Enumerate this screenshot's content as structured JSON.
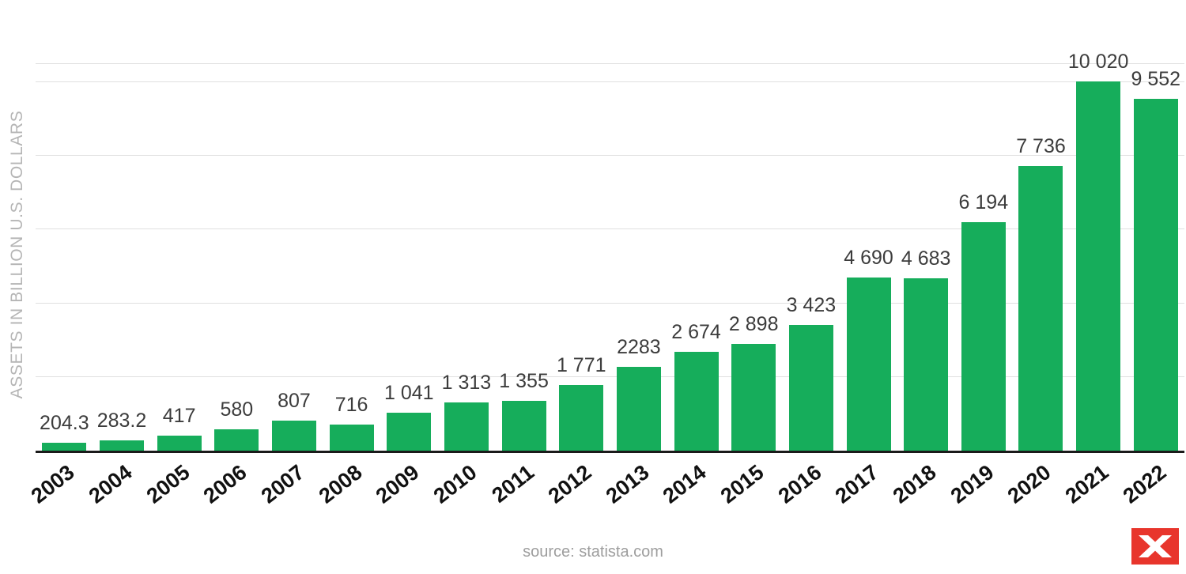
{
  "chart_data": {
    "type": "bar",
    "title": "",
    "xlabel": "",
    "ylabel": "ASSETS IN BILLION U.S. DOLLARS",
    "categories": [
      "2003",
      "2004",
      "2005",
      "2006",
      "2007",
      "2008",
      "2009",
      "2010",
      "2011",
      "2012",
      "2013",
      "2014",
      "2015",
      "2016",
      "2017",
      "2018",
      "2019",
      "2020",
      "2021",
      "2022"
    ],
    "values": [
      204.3,
      283.2,
      417,
      580,
      807,
      716,
      1041,
      1313,
      1355,
      1771,
      2283,
      2674,
      2898,
      3423,
      4690,
      4683,
      6194,
      7736,
      10020,
      9552
    ],
    "value_labels": [
      "204.3",
      "283.2",
      "417",
      "580",
      "807",
      "716",
      "1 041",
      "1 313",
      "1 355",
      "1 771",
      "2283",
      "2 674",
      "2 898",
      "3 423",
      "4 690",
      "4 683",
      "6 194",
      "7 736",
      "10 020",
      "9 552"
    ],
    "ylim": [
      0,
      10580
    ],
    "gridlines": [
      2000,
      4000,
      6000,
      8000,
      10000
    ],
    "grid": true,
    "legend_position": "none",
    "bar_color": "#16ad5b"
  },
  "footer": {
    "source": "source: statista.com"
  },
  "logo": {
    "icon": "statista-bird-icon",
    "color": "#e8352c"
  }
}
